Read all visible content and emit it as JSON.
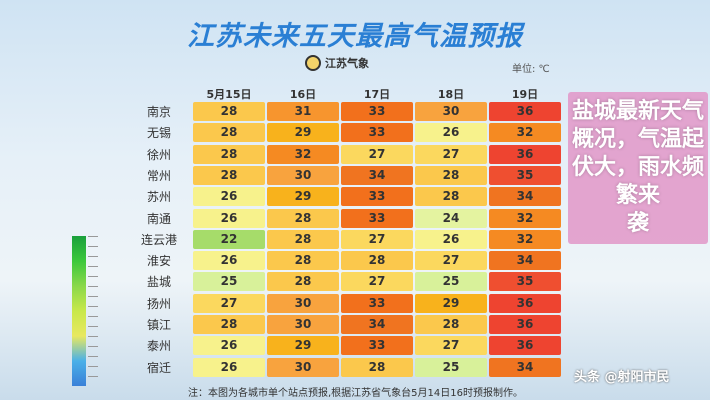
{
  "title": "江苏未来五天最高气温预报",
  "logo_text": "江苏气象",
  "unit": "单位: ℃",
  "headline_line1": "盐城最新天气概况，气温起伏大，雨水频繁来",
  "headline_line2": "袭",
  "note": "注：本图为各城市单个站点预报,根据江苏省气象台5月14日16时预报制作。",
  "watermark": "头条 @射阳市民",
  "columns": [
    "5月15日",
    "16日",
    "17日",
    "18日",
    "19日"
  ],
  "rows": [
    {
      "city": "南京",
      "values": [
        28,
        31,
        33,
        30,
        36
      ]
    },
    {
      "city": "无锡",
      "values": [
        28,
        29,
        33,
        26,
        32
      ]
    },
    {
      "city": "徐州",
      "values": [
        28,
        32,
        27,
        27,
        36
      ]
    },
    {
      "city": "常州",
      "values": [
        28,
        30,
        34,
        28,
        35
      ]
    },
    {
      "city": "苏州",
      "values": [
        26,
        29,
        33,
        28,
        34
      ]
    },
    {
      "city": "南通",
      "values": [
        26,
        28,
        33,
        24,
        32
      ]
    },
    {
      "city": "连云港",
      "values": [
        22,
        28,
        27,
        26,
        32
      ]
    },
    {
      "city": "淮安",
      "values": [
        26,
        28,
        28,
        27,
        34
      ]
    },
    {
      "city": "盐城",
      "values": [
        25,
        28,
        27,
        25,
        35
      ]
    },
    {
      "city": "扬州",
      "values": [
        27,
        30,
        33,
        29,
        36
      ]
    },
    {
      "city": "镇江",
      "values": [
        28,
        30,
        34,
        28,
        36
      ]
    },
    {
      "city": "泰州",
      "values": [
        26,
        29,
        33,
        27,
        36
      ]
    },
    {
      "city": "宿迁",
      "values": [
        26,
        30,
        28,
        25,
        34
      ]
    }
  ],
  "colors": {
    "22": "#a6dc6a",
    "24": "#e4f3a0",
    "25": "#d8f19a",
    "26": "#f7f28c",
    "27": "#fbd85e",
    "28": "#fbc84c",
    "29": "#f8b21c",
    "30": "#f8a33e",
    "31": "#f7952e",
    "32": "#f58a22",
    "33": "#f2701c",
    "34": "#f07420",
    "35": "#ef4f30",
    "36": "#ee4430"
  }
}
